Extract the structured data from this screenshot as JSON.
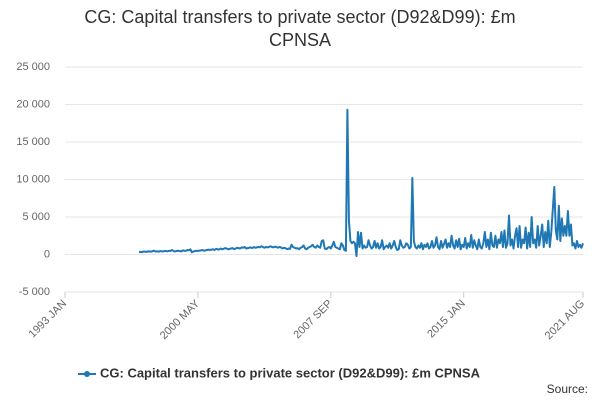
{
  "chart_data": {
    "type": "line",
    "title": "CG: Capital transfers to private sector (D92&D99): £m CPNSA",
    "source": "Source:",
    "grid": true,
    "xlim": [
      "1993 JAN",
      "2021 AUG"
    ],
    "xticks": [
      "1993 JAN",
      "2000 MAY",
      "2007 SEP",
      "2015 JAN",
      "2021 AUG"
    ],
    "ylim": [
      -5000,
      25000
    ],
    "yticks": [
      {
        "value": -5000,
        "label": "-5 000"
      },
      0,
      {
        "value": 5000,
        "label": "5 000"
      },
      {
        "value": 10000,
        "label": "10 000"
      },
      {
        "value": 15000,
        "label": "15 000"
      },
      {
        "value": 20000,
        "label": "20 000"
      },
      {
        "value": 25000,
        "label": "25 000"
      }
    ],
    "x": [
      "1997 FEB",
      "1997 MAR",
      "1997 APR",
      "1997 MAY",
      "1997 JUN",
      "1997 JUL",
      "1997 AUG",
      "1997 SEP",
      "1997 OCT",
      "1997 NOV",
      "1997 DEC",
      "1998 JAN",
      "1998 FEB",
      "1998 MAR",
      "1998 APR",
      "1998 MAY",
      "1998 JUN",
      "1998 JUL",
      "1998 AUG",
      "1998 SEP",
      "1998 OCT",
      "1998 NOV",
      "1998 DEC",
      "1999 JAN",
      "1999 FEB",
      "1999 MAR",
      "1999 APR",
      "1999 MAY",
      "1999 JUN",
      "1999 JUL",
      "1999 AUG",
      "1999 SEP",
      "1999 OCT",
      "1999 NOV",
      "1999 DEC",
      "2000 JAN",
      "2000 FEB",
      "2000 MAR",
      "2000 APR",
      "2000 MAY",
      "2000 JUN",
      "2000 JUL",
      "2000 AUG",
      "2000 SEP",
      "2000 OCT",
      "2000 NOV",
      "2000 DEC",
      "2001 JAN",
      "2001 FEB",
      "2001 MAR",
      "2001 APR",
      "2001 MAY",
      "2001 JUN",
      "2001 JUL",
      "2001 AUG",
      "2001 SEP",
      "2001 OCT",
      "2001 NOV",
      "2001 DEC",
      "2002 JAN",
      "2002 FEB",
      "2002 MAR",
      "2002 APR",
      "2002 MAY",
      "2002 JUN",
      "2002 JUL",
      "2002 AUG",
      "2002 SEP",
      "2002 OCT",
      "2002 NOV",
      "2002 DEC",
      "2003 JAN",
      "2003 FEB",
      "2003 MAR",
      "2003 APR",
      "2003 MAY",
      "2003 JUN",
      "2003 JUL",
      "2003 AUG",
      "2003 SEP",
      "2003 OCT",
      "2003 NOV",
      "2003 DEC",
      "2004 JAN",
      "2004 FEB",
      "2004 MAR",
      "2004 APR",
      "2004 MAY",
      "2004 JUN",
      "2004 JUL",
      "2004 AUG",
      "2004 SEP",
      "2004 OCT",
      "2004 NOV",
      "2004 DEC",
      "2005 JAN",
      "2005 FEB",
      "2005 MAR",
      "2005 APR",
      "2005 MAY",
      "2005 JUN",
      "2005 JUL",
      "2005 AUG",
      "2005 SEP",
      "2005 OCT",
      "2005 NOV",
      "2005 DEC",
      "2006 JAN",
      "2006 FEB",
      "2006 MAR",
      "2006 APR",
      "2006 MAY",
      "2006 JUN",
      "2006 JUL",
      "2006 AUG",
      "2006 SEP",
      "2006 OCT",
      "2006 NOV",
      "2006 DEC",
      "2007 JAN",
      "2007 FEB",
      "2007 MAR",
      "2007 APR",
      "2007 MAY",
      "2007 JUN",
      "2007 JUL",
      "2007 AUG",
      "2007 SEP",
      "2007 OCT",
      "2007 NOV",
      "2007 DEC",
      "2008 JAN",
      "2008 FEB",
      "2008 MAR",
      "2008 APR",
      "2008 MAY",
      "2008 JUN",
      "2008 JUL",
      "2008 AUG",
      "2008 SEP",
      "2008 OCT",
      "2008 NOV",
      "2008 DEC",
      "2009 JAN",
      "2009 FEB",
      "2009 MAR",
      "2009 APR",
      "2009 MAY",
      "2009 JUN",
      "2009 JUL",
      "2009 AUG",
      "2009 SEP",
      "2009 OCT",
      "2009 NOV",
      "2009 DEC",
      "2010 JAN",
      "2010 FEB",
      "2010 MAR",
      "2010 APR",
      "2010 MAY",
      "2010 JUN",
      "2010 JUL",
      "2010 AUG",
      "2010 SEP",
      "2010 OCT",
      "2010 NOV",
      "2010 DEC",
      "2011 JAN",
      "2011 FEB",
      "2011 MAR",
      "2011 APR",
      "2011 MAY",
      "2011 JUN",
      "2011 JUL",
      "2011 AUG",
      "2011 SEP",
      "2011 OCT",
      "2011 NOV",
      "2011 DEC",
      "2012 JAN",
      "2012 FEB",
      "2012 MAR",
      "2012 APR",
      "2012 MAY",
      "2012 JUN",
      "2012 JUL",
      "2012 AUG",
      "2012 SEP",
      "2012 OCT",
      "2012 NOV",
      "2012 DEC",
      "2013 JAN",
      "2013 FEB",
      "2013 MAR",
      "2013 APR",
      "2013 MAY",
      "2013 JUN",
      "2013 JUL",
      "2013 AUG",
      "2013 SEP",
      "2013 OCT",
      "2013 NOV",
      "2013 DEC",
      "2014 JAN",
      "2014 FEB",
      "2014 MAR",
      "2014 APR",
      "2014 MAY",
      "2014 JUN",
      "2014 JUL",
      "2014 AUG",
      "2014 SEP",
      "2014 OCT",
      "2014 NOV",
      "2014 DEC",
      "2015 JAN",
      "2015 FEB",
      "2015 MAR",
      "2015 APR",
      "2015 MAY",
      "2015 JUN",
      "2015 JUL",
      "2015 AUG",
      "2015 SEP",
      "2015 OCT",
      "2015 NOV",
      "2015 DEC",
      "2016 JAN",
      "2016 FEB",
      "2016 MAR",
      "2016 APR",
      "2016 MAY",
      "2016 JUN",
      "2016 JUL",
      "2016 AUG",
      "2016 SEP",
      "2016 OCT",
      "2016 NOV",
      "2016 DEC",
      "2017 JAN",
      "2017 FEB",
      "2017 MAR",
      "2017 APR",
      "2017 MAY",
      "2017 JUN",
      "2017 JUL",
      "2017 AUG",
      "2017 SEP",
      "2017 OCT",
      "2017 NOV",
      "2017 DEC",
      "2018 JAN",
      "2018 FEB",
      "2018 MAR",
      "2018 APR",
      "2018 MAY",
      "2018 JUN",
      "2018 JUL",
      "2018 AUG",
      "2018 SEP",
      "2018 OCT",
      "2018 NOV",
      "2018 DEC",
      "2019 JAN",
      "2019 FEB",
      "2019 MAR",
      "2019 APR",
      "2019 MAY",
      "2019 JUN",
      "2019 JUL",
      "2019 AUG",
      "2019 SEP",
      "2019 OCT",
      "2019 NOV",
      "2019 DEC",
      "2020 JAN",
      "2020 FEB",
      "2020 MAR",
      "2020 APR",
      "2020 MAY",
      "2020 JUN",
      "2020 JUL",
      "2020 AUG",
      "2020 SEP",
      "2020 OCT",
      "2020 NOV",
      "2020 DEC",
      "2021 JAN",
      "2021 FEB",
      "2021 MAR",
      "2021 APR",
      "2021 MAY",
      "2021 JUN",
      "2021 JUL",
      "2021 AUG"
    ],
    "series": [
      {
        "name": "CG: Capital transfers to private sector (D92&D99): £m CPNSA",
        "color": "#1f78b4",
        "values": [
          300,
          350,
          320,
          400,
          380,
          350,
          420,
          400,
          380,
          450,
          500,
          400,
          420,
          380,
          450,
          430,
          400,
          480,
          450,
          420,
          500,
          480,
          600,
          450,
          400,
          480,
          500,
          450,
          420,
          550,
          500,
          480,
          600,
          550,
          700,
          300,
          400,
          450,
          500,
          480,
          520,
          550,
          600,
          500,
          550,
          600,
          650,
          600,
          650,
          700,
          600,
          750,
          700,
          650,
          800,
          700,
          750,
          850,
          800,
          700,
          750,
          800,
          850,
          700,
          800,
          900,
          850,
          800,
          950,
          900,
          1000,
          800,
          850,
          900,
          950,
          850,
          1000,
          900,
          950,
          1000,
          950,
          1100,
          1000,
          900,
          1000,
          950,
          1000,
          1100,
          1000,
          950,
          1050,
          1000,
          900,
          1000,
          950,
          800,
          900,
          850,
          700,
          800,
          750,
          1300,
          1000,
          900,
          800,
          850,
          700,
          900,
          1000,
          1200,
          800,
          700,
          900,
          1000,
          1100,
          1300,
          1000,
          900,
          1200,
          1000,
          900,
          1800,
          1900,
          800,
          700,
          900,
          1000,
          800,
          1200,
          1700,
          1000,
          900,
          800,
          700,
          1500,
          1200,
          600,
          500,
          19300,
          4500,
          1800,
          1500,
          1700,
          1500,
          -200,
          3000,
          1000,
          2900,
          800,
          1200,
          900,
          1000,
          1900,
          1200,
          800,
          1000,
          1800,
          900,
          1500,
          800,
          1000,
          1900,
          700,
          1000,
          1200,
          900,
          1500,
          800,
          1200,
          1800,
          1000,
          600,
          700,
          1900,
          1200,
          900,
          1000,
          1500,
          1300,
          800,
          1000,
          10200,
          1800,
          1000,
          800,
          1200,
          900,
          1500,
          700,
          1300,
          1000,
          1500,
          800,
          1000,
          1800,
          900,
          1200,
          2300,
          1000,
          700,
          1800,
          900,
          1400,
          2000,
          900,
          1500,
          1000,
          2500,
          1200,
          800,
          1900,
          1000,
          2100,
          700,
          1300,
          1000,
          2200,
          800,
          1500,
          1000,
          2600,
          900,
          1900,
          1200,
          700,
          2000,
          1000,
          800,
          1500,
          3000,
          1000,
          2000,
          700,
          2900,
          1200,
          1000,
          2500,
          900,
          2000,
          1500,
          3000,
          1000,
          3200,
          900,
          1500,
          5200,
          1200,
          2000,
          800,
          2500,
          3500,
          1000,
          3800,
          900,
          2000,
          1500,
          3600,
          800,
          2900,
          1000,
          5000,
          1500,
          2000,
          900,
          3800,
          1200,
          2500,
          4000,
          1000,
          3000,
          1500,
          4500,
          1000,
          3000,
          6000,
          9000,
          3200,
          2000,
          6500,
          1800,
          4800,
          2500,
          3800,
          2500,
          5800,
          2500,
          4000,
          1200,
          1500,
          800,
          1800,
          1000,
          1300,
          900,
          1500
        ]
      }
    ]
  }
}
